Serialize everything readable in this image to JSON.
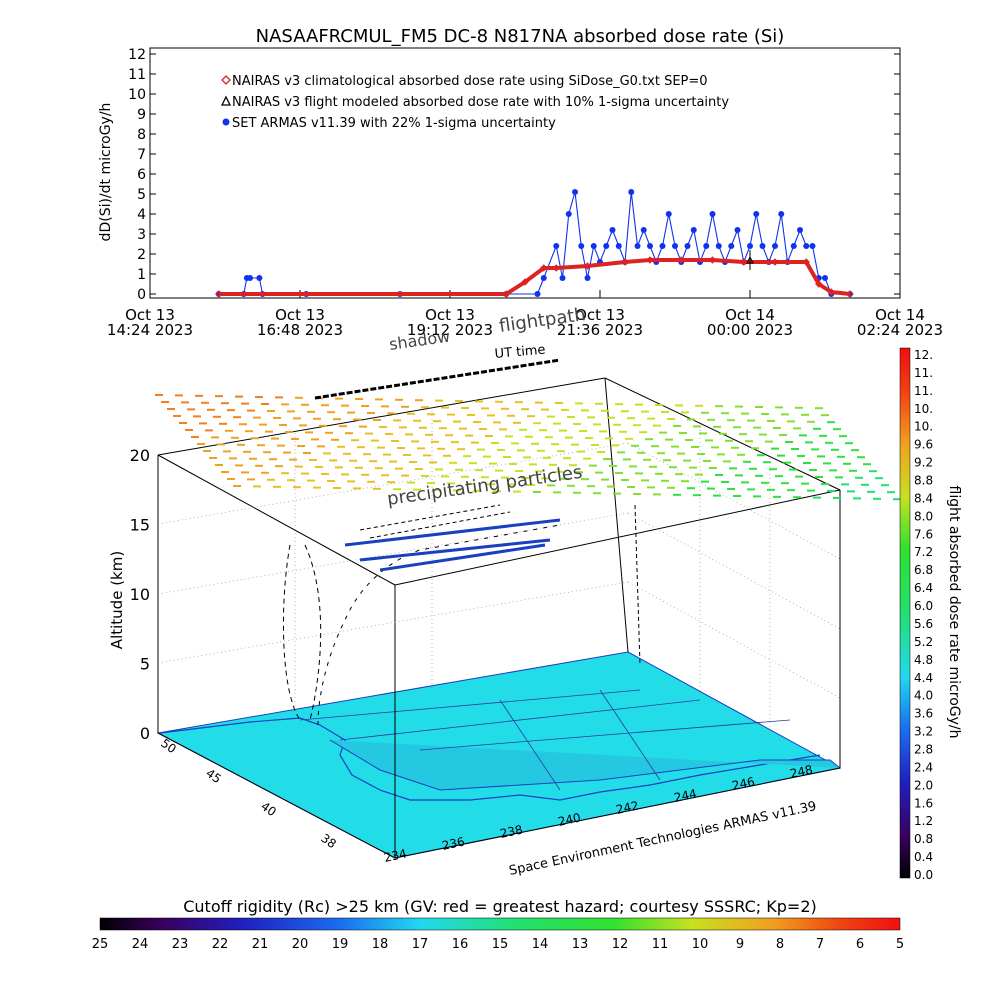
{
  "title": "NASAAFRCMUL_FM5 DC-8   N817NA absorbed dose rate (Si)",
  "colors": {
    "climatological": "#dd2222",
    "flight_modeled": "#000000",
    "armas": "#1133ee",
    "map_fill": "#22dde8",
    "map_coast": "#1a40c0"
  },
  "chart_data": [
    {
      "type": "line",
      "title": "NASAAFRCMUL_FM5 DC-8   N817NA absorbed dose rate (Si)",
      "xlabel": "UT time",
      "ylabel": "dD(Si)/dt microGy/h",
      "ylim": [
        0,
        12
      ],
      "y_ticks": [
        "0",
        "1",
        "2",
        "3",
        "4",
        "5",
        "6",
        "7",
        "8",
        "9",
        "10",
        "11",
        "12"
      ],
      "x_ticks": [
        {
          "line1": "Oct 13",
          "line2": "14:24 2023"
        },
        {
          "line1": "Oct 13",
          "line2": "16:48 2023"
        },
        {
          "line1": "Oct 13",
          "line2": "19:12 2023"
        },
        {
          "line1": "Oct 13",
          "line2": "21:36 2023"
        },
        {
          "line1": "Oct 14",
          "line2": "00:00 2023"
        },
        {
          "line1": "Oct 14",
          "line2": "02:24 2023"
        }
      ],
      "xlim_hours": [
        0,
        12
      ],
      "legend": [
        {
          "label": "NAIRAS v3 climatological absorbed dose rate using SiDose_G0.txt SEP=0",
          "symbol": "diamond",
          "color": "#dd2222"
        },
        {
          "label": "NAIRAS v3 flight modeled absorbed dose rate with 10% 1-sigma uncertainty",
          "symbol": "triangle",
          "color": "#000000"
        },
        {
          "label": "SET ARMAS v11.39 with 22% 1-sigma uncertainty",
          "symbol": "dot",
          "color": "#1133ee"
        }
      ],
      "legend_position": "top-left",
      "series": [
        {
          "name": "NAIRAS v3 climatological absorbed dose rate using SiDose_G0.txt SEP=0",
          "x_hours": [
            1.1,
            5.7,
            6.0,
            6.3,
            6.5,
            7.0,
            7.6,
            8.0,
            8.5,
            9.0,
            9.5,
            10.0,
            10.5,
            10.7,
            10.9,
            11.2
          ],
          "values": [
            0,
            0,
            0.6,
            1.3,
            1.3,
            1.4,
            1.6,
            1.7,
            1.7,
            1.7,
            1.6,
            1.6,
            1.6,
            0.5,
            0.1,
            0
          ]
        },
        {
          "name": "SET ARMAS v11.39 with 22% 1-sigma uncertainty",
          "x_hours": [
            1.1,
            1.5,
            1.55,
            1.6,
            1.75,
            1.8,
            2.5,
            4.0,
            5.7,
            6.2,
            6.3,
            6.5,
            6.6,
            6.7,
            6.8,
            6.9,
            7.0,
            7.1,
            7.2,
            7.3,
            7.4,
            7.5,
            7.6,
            7.7,
            7.8,
            7.9,
            8.0,
            8.1,
            8.2,
            8.3,
            8.4,
            8.5,
            8.6,
            8.7,
            8.8,
            8.9,
            9.0,
            9.1,
            9.2,
            9.3,
            9.4,
            9.5,
            9.6,
            9.7,
            9.8,
            9.9,
            10.0,
            10.1,
            10.2,
            10.3,
            10.4,
            10.5,
            10.6,
            10.7,
            10.8,
            10.9,
            11.2
          ],
          "values": [
            0,
            0,
            0.8,
            0.8,
            0.8,
            0,
            0,
            0,
            0,
            0,
            0.8,
            2.4,
            0.8,
            4.0,
            5.1,
            2.4,
            0.8,
            2.4,
            1.6,
            2.4,
            3.2,
            2.4,
            1.6,
            5.1,
            2.4,
            3.2,
            2.4,
            1.6,
            2.4,
            4.0,
            2.4,
            1.6,
            2.4,
            3.2,
            1.6,
            2.4,
            4.0,
            2.4,
            1.6,
            2.4,
            3.2,
            1.6,
            2.4,
            4.0,
            2.4,
            1.6,
            2.4,
            4.0,
            1.6,
            2.4,
            3.2,
            2.4,
            2.4,
            0.8,
            0.8,
            0,
            0
          ]
        },
        {
          "name": "NAIRAS v3 flight modeled absorbed dose rate with 10% 1-sigma uncertainty",
          "x_hours": [
            9.6
          ],
          "values": [
            1.7
          ]
        }
      ],
      "grid": false
    },
    {
      "type": "scatter",
      "title": "",
      "ylabel": "Altitude (km)",
      "z_ticks": [
        "0",
        "5",
        "10",
        "15",
        "20"
      ],
      "zlim": [
        0,
        20
      ],
      "lat_ticks": [
        "50",
        "45",
        "40",
        "38"
      ],
      "lon_ticks": [
        "234",
        "236",
        "238",
        "240",
        "242",
        "244",
        "246",
        "248"
      ],
      "annotations": [
        "shadow",
        "flightpath",
        "UT time",
        "precipitating particles"
      ],
      "credit": "Space Environment Technologies ARMAS v11.39",
      "colorbar": {
        "label": "flight absorbed dose rate microGy/h",
        "ticks": [
          "0.0",
          "0.4",
          "0.8",
          "1.2",
          "1.6",
          "2.0",
          "2.4",
          "2.8",
          "3.2",
          "3.6",
          "4.0",
          "4.4",
          "4.8",
          "5.2",
          "5.6",
          "6.0",
          "6.4",
          "6.8",
          "7.2",
          "7.6",
          "8.0",
          "8.4",
          "8.8",
          "9.2",
          "9.6",
          "10.",
          "10.",
          "11.",
          "11.",
          "12."
        ]
      },
      "bottom_colorbar": {
        "label": "Cutoff rigidity (Rc) >25 km (GV: red = greatest hazard; courtesy SSSRC; Kp=2)",
        "ticks": [
          "25",
          "24",
          "23",
          "22",
          "21",
          "20",
          "19",
          "18",
          "17",
          "16",
          "15",
          "14",
          "13",
          "12",
          "11",
          "10",
          "9",
          "8",
          "7",
          "6",
          "5"
        ]
      }
    }
  ]
}
